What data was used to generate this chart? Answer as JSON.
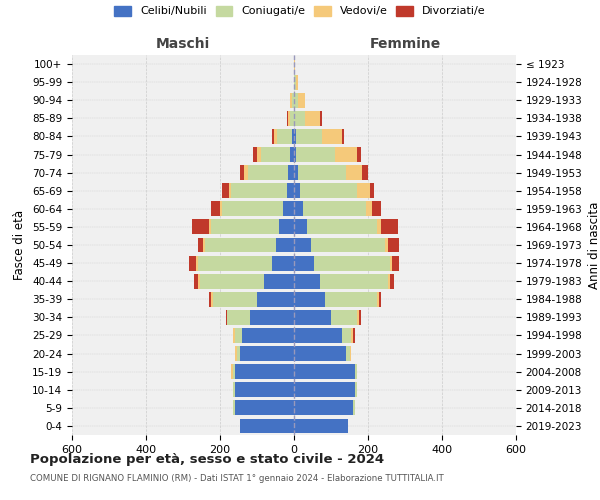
{
  "age_groups": [
    "0-4",
    "5-9",
    "10-14",
    "15-19",
    "20-24",
    "25-29",
    "30-34",
    "35-39",
    "40-44",
    "45-49",
    "50-54",
    "55-59",
    "60-64",
    "65-69",
    "70-74",
    "75-79",
    "80-84",
    "85-89",
    "90-94",
    "95-99",
    "100+"
  ],
  "birth_years": [
    "2019-2023",
    "2014-2018",
    "2009-2013",
    "2004-2008",
    "1999-2003",
    "1994-1998",
    "1989-1993",
    "1984-1988",
    "1979-1983",
    "1974-1978",
    "1969-1973",
    "1964-1968",
    "1959-1963",
    "1954-1958",
    "1949-1953",
    "1944-1948",
    "1939-1943",
    "1934-1938",
    "1929-1933",
    "1924-1928",
    "≤ 1923"
  ],
  "maschi": {
    "celibi": [
      145,
      160,
      160,
      160,
      145,
      140,
      120,
      100,
      80,
      60,
      50,
      40,
      30,
      20,
      15,
      10,
      5,
      0,
      0,
      0,
      0
    ],
    "coniugati": [
      0,
      5,
      5,
      5,
      10,
      20,
      60,
      120,
      175,
      200,
      190,
      185,
      165,
      150,
      110,
      80,
      40,
      10,
      5,
      0,
      0
    ],
    "vedovi": [
      0,
      0,
      0,
      5,
      5,
      5,
      0,
      5,
      5,
      5,
      5,
      5,
      5,
      5,
      10,
      10,
      10,
      5,
      5,
      0,
      0
    ],
    "divorziati": [
      0,
      0,
      0,
      0,
      0,
      0,
      5,
      5,
      10,
      20,
      15,
      45,
      25,
      20,
      10,
      10,
      5,
      5,
      0,
      0,
      0
    ]
  },
  "femmine": {
    "nubili": [
      145,
      160,
      165,
      165,
      140,
      130,
      100,
      85,
      70,
      55,
      45,
      35,
      25,
      15,
      10,
      5,
      5,
      0,
      0,
      0,
      0
    ],
    "coniugate": [
      0,
      5,
      5,
      5,
      10,
      25,
      70,
      140,
      185,
      205,
      200,
      190,
      170,
      155,
      130,
      105,
      70,
      30,
      10,
      5,
      0
    ],
    "vedove": [
      0,
      0,
      0,
      0,
      5,
      5,
      5,
      5,
      5,
      5,
      10,
      10,
      15,
      35,
      45,
      60,
      55,
      40,
      20,
      5,
      2
    ],
    "divorziate": [
      0,
      0,
      0,
      0,
      0,
      5,
      5,
      5,
      10,
      20,
      30,
      45,
      25,
      10,
      15,
      10,
      5,
      5,
      0,
      0,
      0
    ]
  },
  "colors": {
    "celibi": "#4472c4",
    "coniugati": "#c5d9a0",
    "vedovi": "#f5c97a",
    "divorziati": "#c0392b"
  },
  "xlim": 600,
  "title": "Popolazione per età, sesso e stato civile - 2024",
  "subtitle": "COMUNE DI RIGNANO FLAMINIO (RM) - Dati ISTAT 1° gennaio 2024 - Elaborazione TUTTITALIA.IT",
  "xlabel_left": "Maschi",
  "xlabel_right": "Femmine",
  "ylabel_left": "Fasce di età",
  "ylabel_right": "Anni di nascita",
  "legend_labels": [
    "Celibi/Nubili",
    "Coniugati/e",
    "Vedovi/e",
    "Divorziati/e"
  ],
  "bg_color": "#ffffff",
  "grid_color": "#cccccc"
}
